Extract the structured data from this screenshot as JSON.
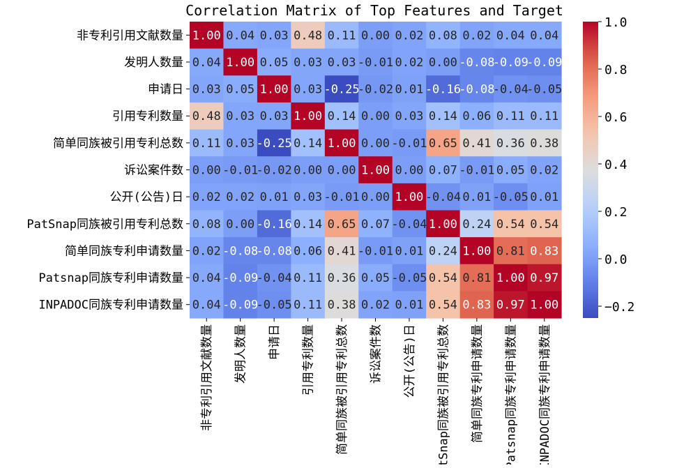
{
  "chart_data": {
    "type": "heatmap",
    "title": "Correlation Matrix of Top Features and Target",
    "labels": [
      "非专利引用文献数量",
      "发明人数量",
      "申请日",
      "引用专利数量",
      "简单同族被引用专利总数",
      "诉讼案件数",
      "公开(公告)日",
      "PatSnap同族被引用专利总数",
      "简单同族专利申请数量",
      "Patsnap同族专利申请数量",
      "INPADOC同族专利申请数量"
    ],
    "values": [
      [
        1.0,
        0.04,
        0.03,
        0.48,
        0.11,
        -0.0,
        0.02,
        0.08,
        0.02,
        0.04,
        0.04
      ],
      [
        0.04,
        1.0,
        0.05,
        0.03,
        0.03,
        -0.01,
        0.02,
        -0.0,
        -0.08,
        -0.09,
        -0.09
      ],
      [
        0.03,
        0.05,
        1.0,
        0.03,
        -0.25,
        -0.02,
        0.01,
        -0.16,
        -0.08,
        -0.04,
        -0.05
      ],
      [
        0.48,
        0.03,
        0.03,
        1.0,
        0.14,
        -0.0,
        0.03,
        0.14,
        0.06,
        0.11,
        0.11
      ],
      [
        0.11,
        0.03,
        -0.25,
        0.14,
        1.0,
        0.0,
        -0.01,
        0.65,
        0.41,
        0.36,
        0.38
      ],
      [
        -0.0,
        -0.01,
        -0.02,
        -0.0,
        0.0,
        1.0,
        0.0,
        0.07,
        -0.01,
        0.05,
        0.02
      ],
      [
        0.02,
        0.02,
        0.01,
        0.03,
        -0.01,
        0.0,
        1.0,
        -0.04,
        0.01,
        -0.05,
        0.01
      ],
      [
        0.08,
        -0.0,
        -0.16,
        0.14,
        0.65,
        0.07,
        -0.04,
        1.0,
        0.24,
        0.54,
        0.54
      ],
      [
        0.02,
        -0.08,
        -0.08,
        0.06,
        0.41,
        -0.01,
        0.01,
        0.24,
        1.0,
        0.81,
        0.83
      ],
      [
        0.04,
        -0.09,
        -0.04,
        0.11,
        0.36,
        0.05,
        -0.05,
        0.54,
        0.81,
        1.0,
        0.97
      ],
      [
        0.04,
        -0.09,
        -0.05,
        0.11,
        0.38,
        0.02,
        0.01,
        0.54,
        0.83,
        0.97,
        1.0
      ]
    ],
    "value_format": "0.00",
    "colormap": "coolwarm",
    "vmin": -0.25,
    "vmax": 1.0,
    "colorbar_ticks": [
      "1.0",
      "0.8",
      "0.6",
      "0.4",
      "0.2",
      "0.0",
      "−0.2"
    ],
    "colorbar_tick_values": [
      1.0,
      0.8,
      0.6,
      0.4,
      0.2,
      0.0,
      -0.2
    ],
    "colors": {
      "low": "#3b4cc0",
      "mid": "#dddddd",
      "high": "#b40426"
    }
  }
}
